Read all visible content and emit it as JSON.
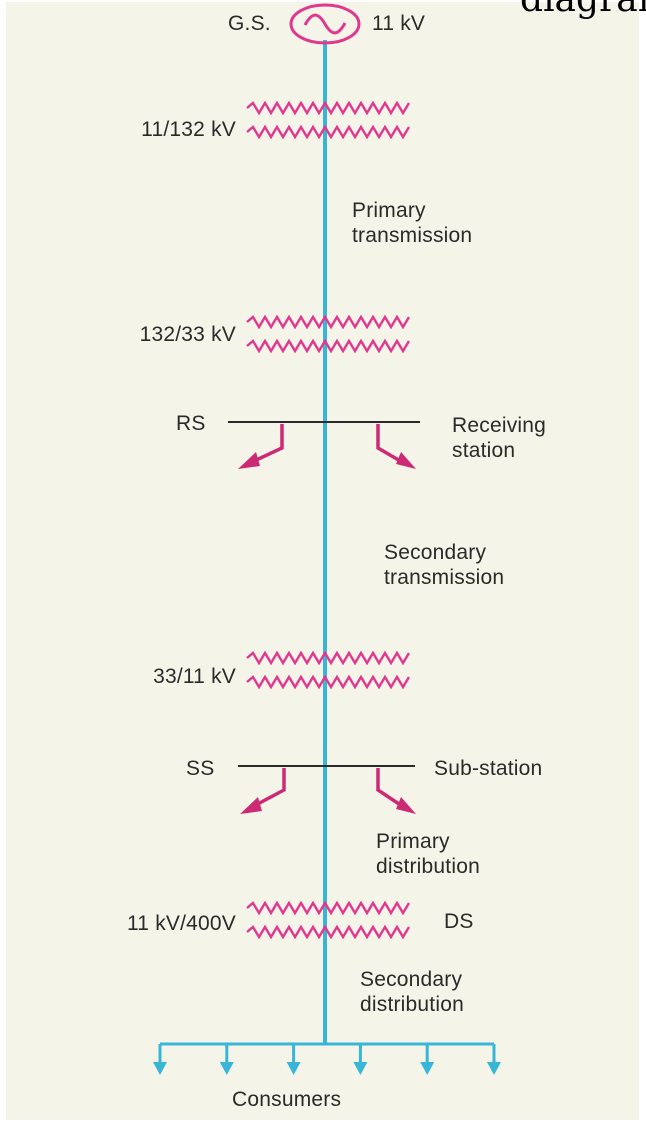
{
  "title_cut": "diagram",
  "colors": {
    "background": "#f4f4e9",
    "line": "#37b6d8",
    "transformer": "#e1388f",
    "station": "#cc2a74",
    "text": "#2a2a2a"
  },
  "generator": {
    "label": "G.S.",
    "voltage": "11 kV"
  },
  "transformers": [
    {
      "ratio": "11/132 kV"
    },
    {
      "ratio": "132/33 kV"
    },
    {
      "ratio": "33/11 kV"
    },
    {
      "ratio": "11 kV/400V",
      "tag": "DS"
    }
  ],
  "stations": [
    {
      "code": "RS",
      "name": "Receiving\nstation"
    },
    {
      "code": "SS",
      "name": "Sub-station"
    }
  ],
  "sections": {
    "primary_transmission": "Primary\ntransmission",
    "secondary_transmission": "Secondary\ntransmission",
    "primary_distribution": "Primary\ndistribution",
    "secondary_distribution": "Secondary\ndistribution"
  },
  "consumers": {
    "label": "Consumers",
    "count": 6
  }
}
